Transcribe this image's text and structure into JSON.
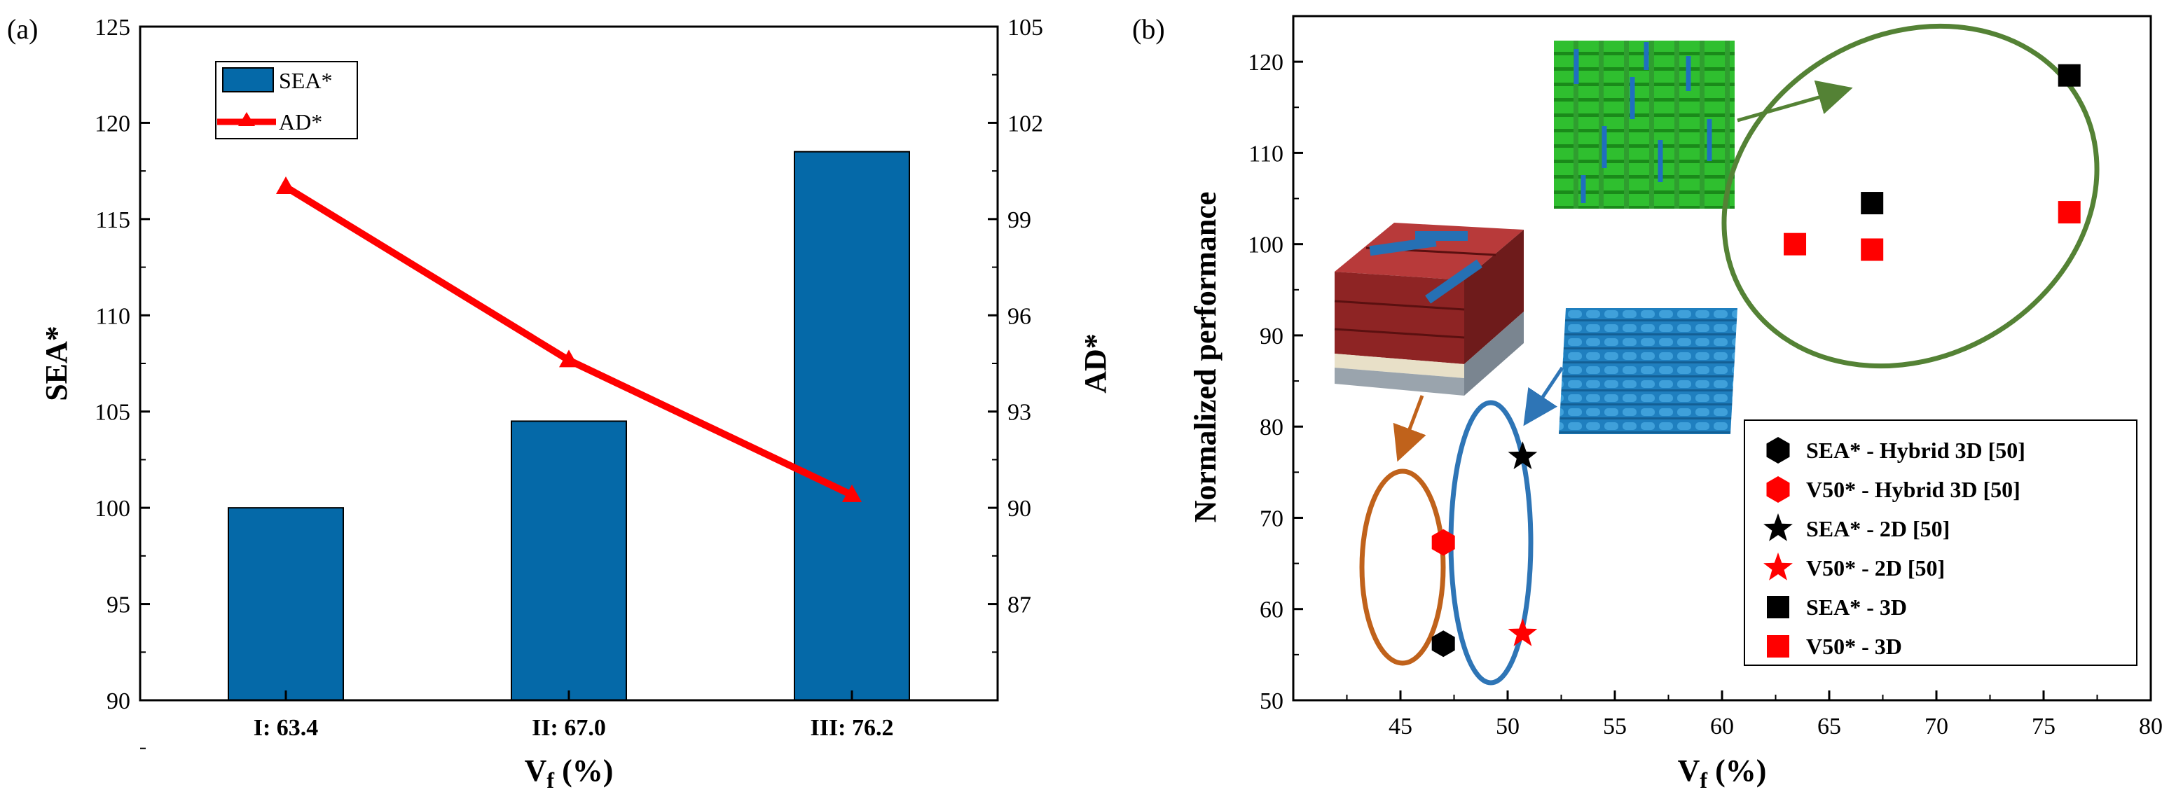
{
  "chart_data": [
    {
      "panel": "(a)",
      "type": "bar",
      "categories": [
        "I: 63.4",
        "II: 67.0",
        "III: 76.2"
      ],
      "series": [
        {
          "name": "SEA*",
          "type": "bar",
          "axis": "left",
          "values": [
            100,
            104.5,
            118.5
          ],
          "color": "#0569a8"
        },
        {
          "name": "AD*",
          "type": "line",
          "axis": "right",
          "marker": "triangle",
          "values": [
            100,
            94.6,
            90.4
          ],
          "color": "#ff0000"
        }
      ],
      "xlabel_main": "V",
      "xlabel_sub": "f",
      "xlabel_tail": " (%)",
      "ylabel": "SEA*",
      "ylabel_right": "AD*",
      "ylim": [
        90,
        125
      ],
      "yticks": [
        "90",
        "95",
        "100",
        "105",
        "110",
        "115",
        "120",
        "125"
      ],
      "ylim_right": [
        84,
        105
      ],
      "yticks_right": [
        "87",
        "90",
        "93",
        "96",
        "99",
        "102",
        "105"
      ],
      "legend": [
        "SEA*",
        "AD*"
      ],
      "legend_position": "top-left"
    },
    {
      "panel": "(b)",
      "type": "scatter",
      "xlabel_main": "V",
      "xlabel_sub": "f",
      "xlabel_tail": " (%)",
      "ylabel": "Normalized performance",
      "xlim": [
        40,
        80
      ],
      "xticks": [
        "45",
        "50",
        "55",
        "60",
        "65",
        "70",
        "75",
        "80"
      ],
      "ylim": [
        50,
        125
      ],
      "yticks": [
        "50",
        "60",
        "70",
        "80",
        "90",
        "100",
        "110",
        "120"
      ],
      "series": [
        {
          "name": "SEA* - Hybrid 3D [50]",
          "marker": "hexagon",
          "color": "#000000",
          "points": [
            [
              47.0,
              56.2
            ]
          ]
        },
        {
          "name": "V50* - Hybrid 3D [50]",
          "marker": "hexagon",
          "color": "#ff0000",
          "points": [
            [
              47.0,
              67.3
            ]
          ]
        },
        {
          "name": "SEA* - 2D [50]",
          "marker": "star",
          "color": "#000000",
          "points": [
            [
              50.7,
              76.7
            ]
          ]
        },
        {
          "name": "V50* - 2D [50]",
          "marker": "star",
          "color": "#ff0000",
          "points": [
            [
              50.7,
              57.3
            ]
          ]
        },
        {
          "name": "SEA* - 3D",
          "marker": "square",
          "color": "#000000",
          "points": [
            [
              67.0,
              104.5
            ],
            [
              76.2,
              118.5
            ]
          ]
        },
        {
          "name": "V50* - 3D",
          "marker": "square",
          "color": "#ff0000",
          "points": [
            [
              63.4,
              100.0
            ],
            [
              67.0,
              99.4
            ],
            [
              76.2,
              103.5
            ]
          ]
        }
      ],
      "ellipse_colors": {
        "hybrid": "#c0621b",
        "twod": "#2e75b6",
        "threed": "#548235"
      },
      "legend_position": "bottom-right"
    }
  ]
}
